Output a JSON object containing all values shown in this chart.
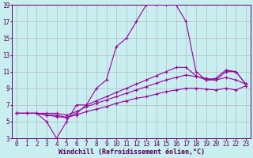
{
  "xlabel": "Windchill (Refroidissement éolien,°C)",
  "ylabel": "",
  "bg_color": "#c8eef0",
  "grid_color": "#b0b0b0",
  "line_color": "#990099",
  "xlim": [
    -0.5,
    23.5
  ],
  "ylim": [
    3,
    19
  ],
  "xticks": [
    0,
    1,
    2,
    3,
    4,
    5,
    6,
    7,
    8,
    9,
    10,
    11,
    12,
    13,
    14,
    15,
    16,
    17,
    18,
    19,
    20,
    21,
    22,
    23
  ],
  "yticks": [
    3,
    5,
    7,
    9,
    11,
    13,
    15,
    17,
    19
  ],
  "line1_x": [
    0,
    1,
    2,
    3,
    4,
    5,
    6,
    7,
    8,
    9,
    10,
    11,
    12,
    13,
    14,
    15,
    16,
    17,
    18,
    19,
    20,
    21,
    22,
    23
  ],
  "line1_y": [
    6,
    6,
    6,
    5,
    3,
    5,
    7,
    7,
    9,
    10,
    14,
    15,
    17,
    19,
    19,
    19,
    19,
    17,
    11,
    10,
    10,
    11,
    11,
    9.5
  ],
  "line2_x": [
    0,
    1,
    2,
    3,
    4,
    5,
    6,
    7,
    8,
    9,
    10,
    11,
    12,
    13,
    14,
    15,
    16,
    17,
    18,
    19,
    20,
    21,
    22,
    23
  ],
  "line2_y": [
    6,
    6,
    6,
    5.8,
    5.8,
    5.5,
    6,
    7,
    7.5,
    8,
    8.5,
    9,
    9.5,
    10,
    10.5,
    11,
    11.5,
    11.5,
    10.5,
    10,
    10.2,
    11.2,
    11,
    9.5
  ],
  "line3_x": [
    0,
    1,
    2,
    3,
    4,
    5,
    6,
    7,
    8,
    9,
    10,
    11,
    12,
    13,
    14,
    15,
    16,
    17,
    18,
    19,
    20,
    21,
    22,
    23
  ],
  "line3_y": [
    6,
    6,
    6,
    6,
    6,
    5.8,
    6.2,
    6.8,
    7.2,
    7.6,
    8.0,
    8.4,
    8.8,
    9.2,
    9.6,
    10.0,
    10.3,
    10.6,
    10.4,
    10.2,
    10.0,
    10.3,
    10.0,
    9.5
  ],
  "line4_x": [
    0,
    1,
    2,
    3,
    4,
    5,
    6,
    7,
    8,
    9,
    10,
    11,
    12,
    13,
    14,
    15,
    16,
    17,
    18,
    19,
    20,
    21,
    22,
    23
  ],
  "line4_y": [
    6,
    6,
    6,
    5.8,
    5.6,
    5.5,
    5.8,
    6.2,
    6.5,
    6.8,
    7.2,
    7.5,
    7.8,
    8.0,
    8.3,
    8.6,
    8.8,
    9.0,
    9.0,
    8.9,
    8.8,
    9.0,
    8.8,
    9.3
  ],
  "font_size": 6,
  "tick_font_size": 5.5
}
